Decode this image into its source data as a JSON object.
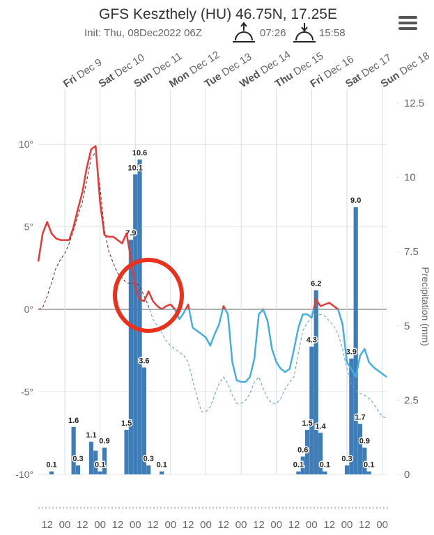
{
  "header": {
    "title": "GFS Keszthely (HU) 46.75N, 17.25E",
    "subtitle": "Init: Thu, 08Dec2022 06Z",
    "sunrise": "07:26",
    "sunset": "15:58"
  },
  "chart_data": {
    "type": "line",
    "categories": [
      null,
      null,
      "12",
      null,
      null,
      null,
      "00",
      null,
      null,
      null,
      "12",
      null,
      null,
      null,
      "00",
      null,
      null,
      null,
      "12",
      null,
      null,
      null,
      "00",
      null,
      null,
      null,
      "12",
      null,
      null,
      null,
      "00",
      null,
      null,
      null,
      "12",
      null,
      null,
      null,
      "00",
      null,
      null,
      null,
      "12",
      null,
      null,
      null,
      "00",
      null,
      null,
      null,
      "12",
      null,
      null,
      null,
      "00",
      null,
      null,
      null,
      "12",
      null,
      null,
      null,
      "00",
      null,
      null,
      null,
      "12",
      null,
      null,
      null,
      "00",
      null,
      null,
      null,
      "12",
      null,
      null,
      null,
      "00",
      null
    ],
    "x2_categories": [
      null,
      null,
      null,
      null,
      null,
      null,
      "Fri Dec 9",
      null,
      null,
      null,
      null,
      null,
      null,
      null,
      "Sat Dec 10",
      null,
      null,
      null,
      null,
      null,
      null,
      null,
      "Sun Dec 11",
      null,
      null,
      null,
      null,
      null,
      null,
      null,
      "Mon Dec 12",
      null,
      null,
      null,
      null,
      null,
      null,
      null,
      "Tue Dec 13",
      null,
      null,
      null,
      null,
      null,
      null,
      null,
      "Wed Dec 14",
      null,
      null,
      null,
      null,
      null,
      null,
      null,
      "Thu Dec 15",
      null,
      null,
      null,
      null,
      null,
      null,
      null,
      "Fri Dec 16",
      null,
      null,
      null,
      null,
      null,
      null,
      null,
      "Sat Dec 17",
      null,
      null,
      null,
      null,
      null,
      null,
      null,
      "Sun Dec 18",
      null
    ],
    "ylim": [
      -10,
      12.5
    ],
    "yticks": [
      {
        "value": -10,
        "label": "-10°"
      },
      {
        "value": -5,
        "label": "-5°"
      },
      {
        "value": 0,
        "label": "0°"
      },
      {
        "value": 5,
        "label": "5°"
      },
      {
        "value": 10,
        "label": "10°"
      }
    ],
    "y2lim": [
      0,
      12.5
    ],
    "y2ticks": [
      0,
      2.5,
      5,
      7.5,
      10,
      12.5
    ],
    "y2label": "Precipitation (mm)",
    "grid": true,
    "series": [
      {
        "type": "bar",
        "axis": "y2",
        "color": "#3f7db8",
        "values": [
          0,
          0,
          0,
          0.1,
          0,
          0,
          0,
          0,
          1.6,
          0.3,
          0,
          0,
          1.1,
          0.8,
          0.1,
          0.9,
          0,
          0,
          0,
          0,
          1.5,
          7.9,
          10.1,
          10.6,
          3.6,
          0.3,
          0,
          0,
          0.1,
          0,
          0,
          0,
          0,
          0,
          0,
          0,
          0,
          0,
          0,
          0,
          0,
          0,
          0,
          0,
          0,
          0,
          0,
          0,
          0,
          0,
          0,
          0,
          0,
          0,
          0,
          0,
          0,
          0,
          0,
          0.1,
          0.6,
          1.5,
          4.3,
          6.2,
          1.4,
          0.1,
          0,
          0,
          0,
          0,
          0.3,
          3.9,
          9,
          1.7,
          0.9,
          0.1,
          0,
          0,
          0,
          0
        ],
        "value_labels": [
          null,
          null,
          null,
          "0.1",
          null,
          null,
          null,
          null,
          "1.6",
          "0.3",
          null,
          null,
          "1.1",
          null,
          "0.1",
          "0.9",
          null,
          null,
          null,
          null,
          "1.5",
          "7.9",
          "10.1",
          "10.6",
          "3.6",
          "0.3",
          null,
          null,
          "0.1",
          null,
          null,
          null,
          null,
          null,
          null,
          null,
          null,
          null,
          null,
          null,
          null,
          null,
          null,
          null,
          null,
          null,
          null,
          null,
          null,
          null,
          null,
          null,
          null,
          null,
          null,
          null,
          null,
          null,
          null,
          "0.1",
          "0.6",
          "1.5",
          "4.3",
          "6.2",
          "1.4",
          "0.1",
          null,
          null,
          null,
          null,
          "0.3",
          "3.9",
          "9.0",
          "1.7",
          "0.9",
          "0.1",
          null,
          null,
          null,
          null
        ]
      },
      {
        "type": "line",
        "dashed": true,
        "color": "#7a1c1c",
        "negative_color": "#5b9bd0",
        "values": [
          0.0,
          0.1,
          0.8,
          1.6,
          2.5,
          3.0,
          3.4,
          4.0,
          4.8,
          5.7,
          6.5,
          7.8,
          9.2,
          9.5,
          7.4,
          4.8,
          3.5,
          2.8,
          2.2,
          1.9,
          1.6,
          1.6,
          1.6,
          1.4,
          0.8,
          0.2,
          -0.6,
          -1.0,
          -1.4,
          -1.9,
          -2.2,
          -2.4,
          -2.6,
          -2.8,
          -3.2,
          -4.3,
          -5.3,
          -6.2,
          -6.2,
          -5.9,
          -5.2,
          -4.5,
          -4.1,
          -4.5,
          -5.2,
          -5.7,
          -5.7,
          -5.5,
          -5.1,
          -4.4,
          -4.1,
          -4.8,
          -5.4,
          -5.7,
          -5.7,
          -5.4,
          -4.8,
          -4.4,
          -4.1,
          -2.6,
          -1.3,
          -0.8,
          -0.5,
          -0.3,
          -0.3,
          -0.4,
          -0.7,
          -1.0,
          -1.5,
          -2.4,
          -3.6,
          -4.5,
          -4.9,
          -5.1,
          -5.2,
          -5.4,
          -5.7,
          -6.1,
          -6.5,
          -6.6
        ]
      },
      {
        "type": "line",
        "color": "#e53935",
        "negative_color": "#45aee0",
        "values": [
          2.9,
          4.6,
          5.3,
          4.6,
          4.3,
          4.2,
          4.2,
          4.2,
          5.0,
          6.1,
          7.1,
          8.6,
          9.7,
          9.9,
          6.5,
          4.5,
          4.4,
          4.4,
          4.2,
          4.0,
          4.6,
          3.1,
          1.4,
          0.6,
          0.5,
          1.1,
          0.5,
          0.2,
          0.0,
          0.2,
          0.3,
          0.0,
          -0.6,
          -0.2,
          0.3,
          -1.1,
          -1.3,
          -1.5,
          -1.7,
          -2.2,
          -1.5,
          -0.9,
          0.2,
          -0.3,
          -3.2,
          -4.3,
          -4.4,
          -4.4,
          -4.1,
          -3.0,
          -0.3,
          0.0,
          -0.7,
          -2.4,
          -3.2,
          -3.6,
          -3.8,
          -3.6,
          -2.4,
          -1.1,
          -0.3,
          -0.3,
          -0.5,
          0.6,
          0.2,
          0.3,
          0.4,
          0.2,
          0.0,
          -0.9,
          -3.2,
          -3.6,
          -4.1,
          -2.8,
          -2.4,
          -3.2,
          -3.5,
          -3.7,
          -3.9,
          -4.1
        ]
      }
    ]
  }
}
